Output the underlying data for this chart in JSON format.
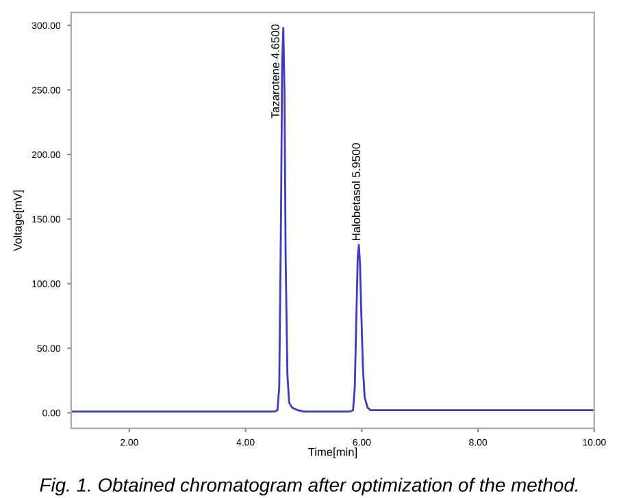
{
  "chart_data": {
    "type": "line",
    "xlabel": "Time[min]",
    "ylabel": "Voltage[mV]",
    "x": [
      1.0,
      2.0,
      3.0,
      4.0,
      4.5,
      4.55,
      4.58,
      4.61,
      4.63,
      4.65,
      4.67,
      4.69,
      4.72,
      4.75,
      4.8,
      4.9,
      5.0,
      5.5,
      5.8,
      5.85,
      5.88,
      5.91,
      5.93,
      5.95,
      5.97,
      5.99,
      6.02,
      6.05,
      6.1,
      6.15,
      6.3,
      7.0,
      8.0,
      9.0,
      10.0
    ],
    "series": [
      {
        "color": "#3a3ad0",
        "values": [
          1,
          1,
          1,
          1,
          1,
          2,
          20,
          150,
          270,
          298,
          250,
          120,
          30,
          8,
          4,
          2,
          1,
          1,
          1,
          2,
          20,
          80,
          120,
          130,
          115,
          80,
          35,
          12,
          4,
          2,
          2,
          2,
          2,
          2,
          2
        ]
      }
    ],
    "xlim": [
      1.0,
      10.0
    ],
    "ylim": [
      -12,
      310
    ],
    "xticks": [
      {
        "value": 2,
        "label": "2.00"
      },
      {
        "value": 4,
        "label": "4.00"
      },
      {
        "value": 6,
        "label": "6.00"
      },
      {
        "value": 8,
        "label": "8.00"
      },
      {
        "value": 10,
        "label": "10.00"
      }
    ],
    "yticks": [
      {
        "value": 0,
        "label": "0.00"
      },
      {
        "value": 50,
        "label": "50.00"
      },
      {
        "value": 100,
        "label": "100.00"
      },
      {
        "value": 150,
        "label": "150.00"
      },
      {
        "value": 200,
        "label": "200.00"
      },
      {
        "value": 250,
        "label": "250.00"
      },
      {
        "value": 300,
        "label": "300.00"
      }
    ],
    "grid": false,
    "legend": false,
    "marker": "none",
    "line_style": "solid",
    "annotations": [
      {
        "text": "Tazarotene 4.6500",
        "x": 4.65,
        "y": 298
      },
      {
        "text": "Halobetasol 5.9500",
        "x": 5.95,
        "y": 130
      },
      "Fig. 1. Obtained chromatogram after optimization of the method."
    ]
  }
}
